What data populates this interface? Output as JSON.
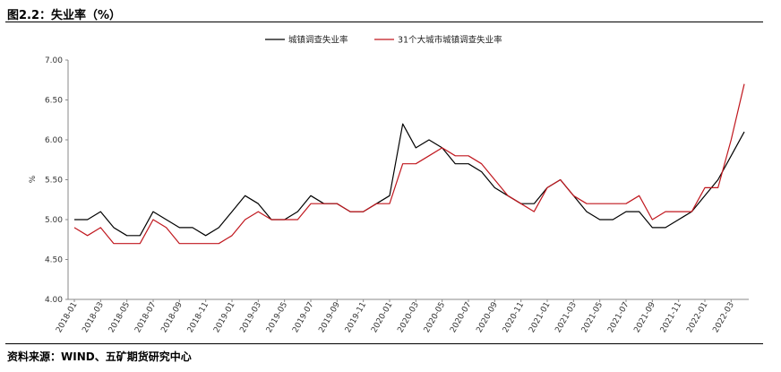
{
  "figure": {
    "title": "图2.2：失业率（%）",
    "source": "资料来源：WIND、五矿期货研究中心"
  },
  "chart_data": {
    "type": "line",
    "ylabel": "%",
    "xlabel": "",
    "ylim": [
      4.0,
      7.0
    ],
    "yticks": [
      "7.00",
      "6.50",
      "6.00",
      "5.50",
      "5.00",
      "4.50",
      "4.00"
    ],
    "ytick_values": [
      7.0,
      6.5,
      6.0,
      5.5,
      5.0,
      4.5,
      4.0
    ],
    "legend_position": "top-center",
    "x": [
      "2018-01",
      "2018-02",
      "2018-03",
      "2018-04",
      "2018-05",
      "2018-06",
      "2018-07",
      "2018-08",
      "2018-09",
      "2018-10",
      "2018-11",
      "2018-12",
      "2019-01",
      "2019-02",
      "2019-03",
      "2019-04",
      "2019-05",
      "2019-06",
      "2019-07",
      "2019-08",
      "2019-09",
      "2019-10",
      "2019-11",
      "2019-12",
      "2020-01",
      "2020-02",
      "2020-03",
      "2020-04",
      "2020-05",
      "2020-06",
      "2020-07",
      "2020-08",
      "2020-09",
      "2020-10",
      "2020-11",
      "2020-12",
      "2021-01",
      "2021-02",
      "2021-03",
      "2021-04",
      "2021-05",
      "2021-06",
      "2021-07",
      "2021-08",
      "2021-09",
      "2021-10",
      "2021-11",
      "2021-12",
      "2022-01",
      "2022-02",
      "2022-03",
      "2022-04"
    ],
    "xticks": [
      "2018-01",
      "2018-03",
      "2018-05",
      "2018-07",
      "2018-09",
      "2018-11",
      "2019-01",
      "2019-03",
      "2019-05",
      "2019-07",
      "2019-09",
      "2019-11",
      "2020-01",
      "2020-03",
      "2020-05",
      "2020-07",
      "2020-09",
      "2020-11",
      "2021-01",
      "2021-03",
      "2021-05",
      "2021-07",
      "2021-09",
      "2021-11",
      "2022-01",
      "2022-03"
    ],
    "series": [
      {
        "name": "城镇调查失业率",
        "color": "#000000",
        "values": [
          5.0,
          5.0,
          5.1,
          4.9,
          4.8,
          4.8,
          5.1,
          5.0,
          4.9,
          4.9,
          4.8,
          4.9,
          5.1,
          5.3,
          5.2,
          5.0,
          5.0,
          5.1,
          5.3,
          5.2,
          5.2,
          5.1,
          5.1,
          5.2,
          5.3,
          6.2,
          5.9,
          6.0,
          5.9,
          5.7,
          5.7,
          5.6,
          5.4,
          5.3,
          5.2,
          5.2,
          5.4,
          5.5,
          5.3,
          5.1,
          5.0,
          5.0,
          5.1,
          5.1,
          4.9,
          4.9,
          5.0,
          5.1,
          5.3,
          5.5,
          5.8,
          6.1
        ]
      },
      {
        "name": "31个大城市城镇调查失业率",
        "color": "#c0171e",
        "values": [
          4.9,
          4.8,
          4.9,
          4.7,
          4.7,
          4.7,
          5.0,
          4.9,
          4.7,
          4.7,
          4.7,
          4.7,
          4.8,
          5.0,
          5.1,
          5.0,
          5.0,
          5.0,
          5.2,
          5.2,
          5.2,
          5.1,
          5.1,
          5.2,
          5.2,
          5.7,
          5.7,
          5.8,
          5.9,
          5.8,
          5.8,
          5.7,
          5.5,
          5.3,
          5.2,
          5.1,
          5.4,
          5.5,
          5.3,
          5.2,
          5.2,
          5.2,
          5.2,
          5.3,
          5.0,
          5.1,
          5.1,
          5.1,
          5.4,
          5.4,
          6.0,
          6.7
        ]
      }
    ]
  }
}
